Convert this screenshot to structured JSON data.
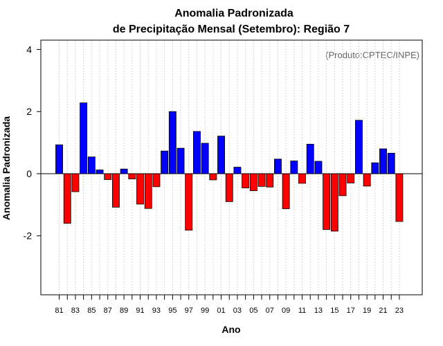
{
  "chart_data": {
    "type": "bar",
    "title": "Anomalia Padronizada",
    "subtitle": "de Precipitação Mensal (Setembro): Região 7",
    "xlabel": "Ano",
    "ylabel": "Anomalia Padronizada",
    "credit": "(Produto:CPTEC/INPE)",
    "ylim": [
      -3.9,
      4.3
    ],
    "yticks": [
      "4",
      "2",
      "0",
      "-2"
    ],
    "ytick_values": [
      4,
      2,
      0,
      -2
    ],
    "categories": [
      "81",
      "82",
      "83",
      "84",
      "85",
      "86",
      "87",
      "88",
      "89",
      "90",
      "91",
      "92",
      "93",
      "94",
      "95",
      "96",
      "97",
      "98",
      "99",
      "00",
      "01",
      "02",
      "03",
      "04",
      "05",
      "06",
      "07",
      "08",
      "09",
      "10",
      "11",
      "12",
      "13",
      "14",
      "15",
      "16",
      "17",
      "18",
      "19",
      "20",
      "21",
      "22",
      "23"
    ],
    "xtick_labels": [
      "81",
      "83",
      "85",
      "87",
      "89",
      "91",
      "93",
      "95",
      "97",
      "99",
      "01",
      "03",
      "05",
      "07",
      "09",
      "11",
      "13",
      "15",
      "17",
      "19",
      "21",
      "23"
    ],
    "values": [
      0.93,
      -1.6,
      -0.58,
      2.28,
      0.54,
      0.12,
      -0.19,
      -1.08,
      0.15,
      -0.17,
      -0.98,
      -1.12,
      -0.42,
      0.73,
      2.0,
      0.82,
      -1.82,
      1.36,
      0.98,
      -0.2,
      1.21,
      -0.9,
      0.21,
      -0.46,
      -0.55,
      -0.41,
      -0.43,
      0.47,
      -1.13,
      0.41,
      -0.31,
      0.95,
      0.4,
      -1.8,
      -1.85,
      -0.71,
      -0.3,
      1.72,
      -0.4,
      0.35,
      0.8,
      0.66,
      -1.54
    ],
    "colors": {
      "positive": "#0000ff",
      "negative": "#ff0000",
      "outline": "#000000",
      "grid": "#d3d3d3"
    },
    "grid": true
  }
}
